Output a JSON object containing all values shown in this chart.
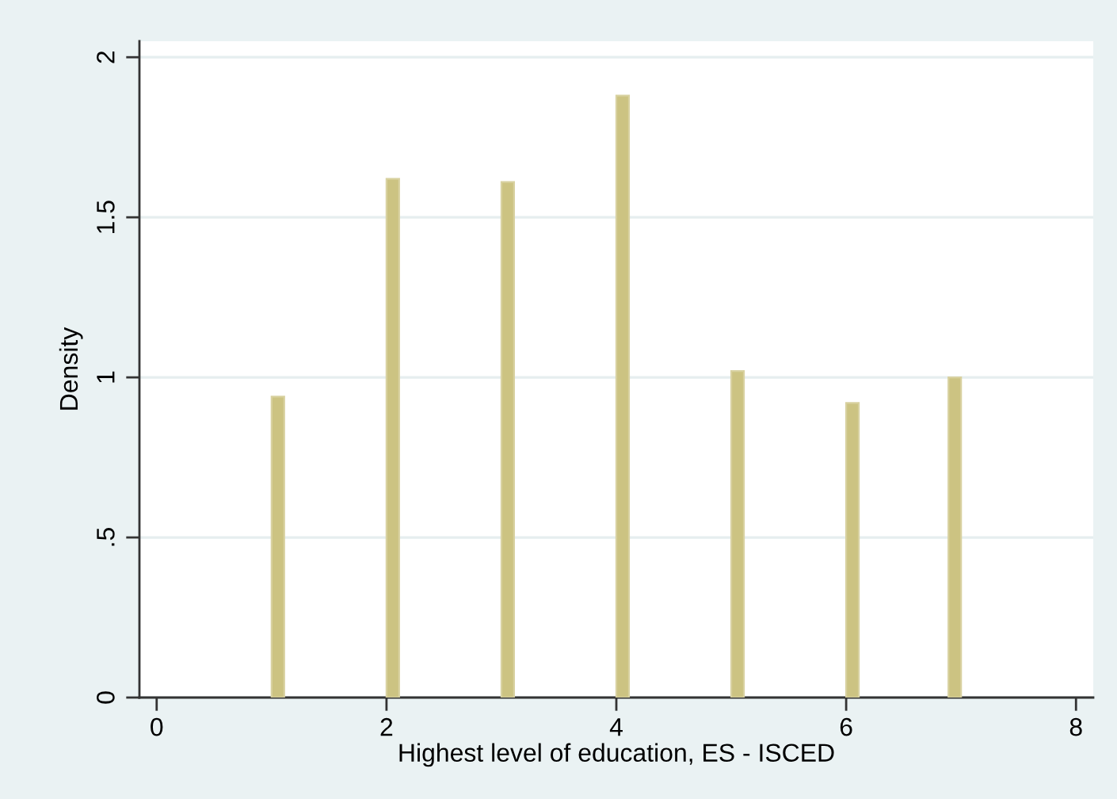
{
  "chart_data": {
    "type": "histogram",
    "xlabel": "Highest level of education, ES - ISCED",
    "ylabel": "Density",
    "bins": [
      1,
      1.11,
      2,
      2.11,
      3,
      3.11,
      4,
      4.11,
      5,
      5.11,
      6,
      6.11,
      6.89,
      7
    ],
    "values": [
      0.94,
      0,
      1.62,
      0,
      1.61,
      0,
      1.88,
      0,
      1.02,
      0,
      0.92,
      0,
      1.0
    ],
    "color": "#ccc382",
    "xlim": [
      -0.15,
      8.15
    ],
    "xticks": [
      0,
      2,
      4,
      6,
      8
    ],
    "ylim": [
      0,
      2.05
    ],
    "yticks": [
      0,
      {
        "value": 0.5,
        "label": ".5"
      },
      1,
      {
        "value": 1.5,
        "label": "1.5"
      },
      2
    ],
    "grid": "y"
  }
}
